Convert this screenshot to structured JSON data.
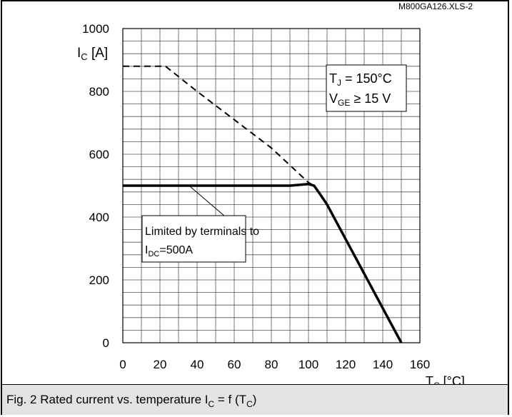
{
  "file_label": "M800GA126.XLS-2",
  "caption": {
    "before_sub1": "Fig. 2 Rated current vs. temperature I",
    "sub1": "C",
    "middle": " = f (T",
    "sub2": "C",
    "after": ")"
  },
  "chart_data": {
    "type": "line",
    "title": "",
    "xlabel": {
      "main": "T",
      "sub": "C",
      "unit": " [°C]"
    },
    "ylabel": {
      "main": "I",
      "sub": "C",
      "unit": " [A]"
    },
    "xlim": [
      0,
      160
    ],
    "ylim": [
      0,
      1000
    ],
    "x_ticks": [
      0,
      20,
      40,
      60,
      80,
      100,
      120,
      140,
      160
    ],
    "y_ticks": [
      0,
      200,
      400,
      600,
      800,
      1000
    ],
    "grid": true,
    "minor_x_step": 10,
    "minor_y_step": 40,
    "conditions": {
      "tj": {
        "main": "T",
        "sub": "J",
        "text": " = 150°C"
      },
      "vge": {
        "main": "V",
        "sub": "GE",
        "text": " ≥ 15 V"
      }
    },
    "annotation": {
      "line1": "Limited by terminals to",
      "line2_main": "I",
      "line2_sub": "DC",
      "line2_rest": "=500A"
    },
    "series": [
      {
        "style": "dashed",
        "points": [
          [
            0,
            880
          ],
          [
            23,
            880
          ],
          [
            40,
            800
          ],
          [
            60,
            710
          ],
          [
            80,
            620
          ],
          [
            100,
            510
          ],
          [
            103,
            500
          ]
        ]
      },
      {
        "style": "solid",
        "points": [
          [
            0,
            500
          ],
          [
            90,
            500
          ],
          [
            100,
            505
          ],
          [
            103,
            500
          ],
          [
            106,
            475
          ],
          [
            110,
            440
          ],
          [
            130,
            220
          ],
          [
            150,
            0
          ]
        ]
      }
    ]
  }
}
